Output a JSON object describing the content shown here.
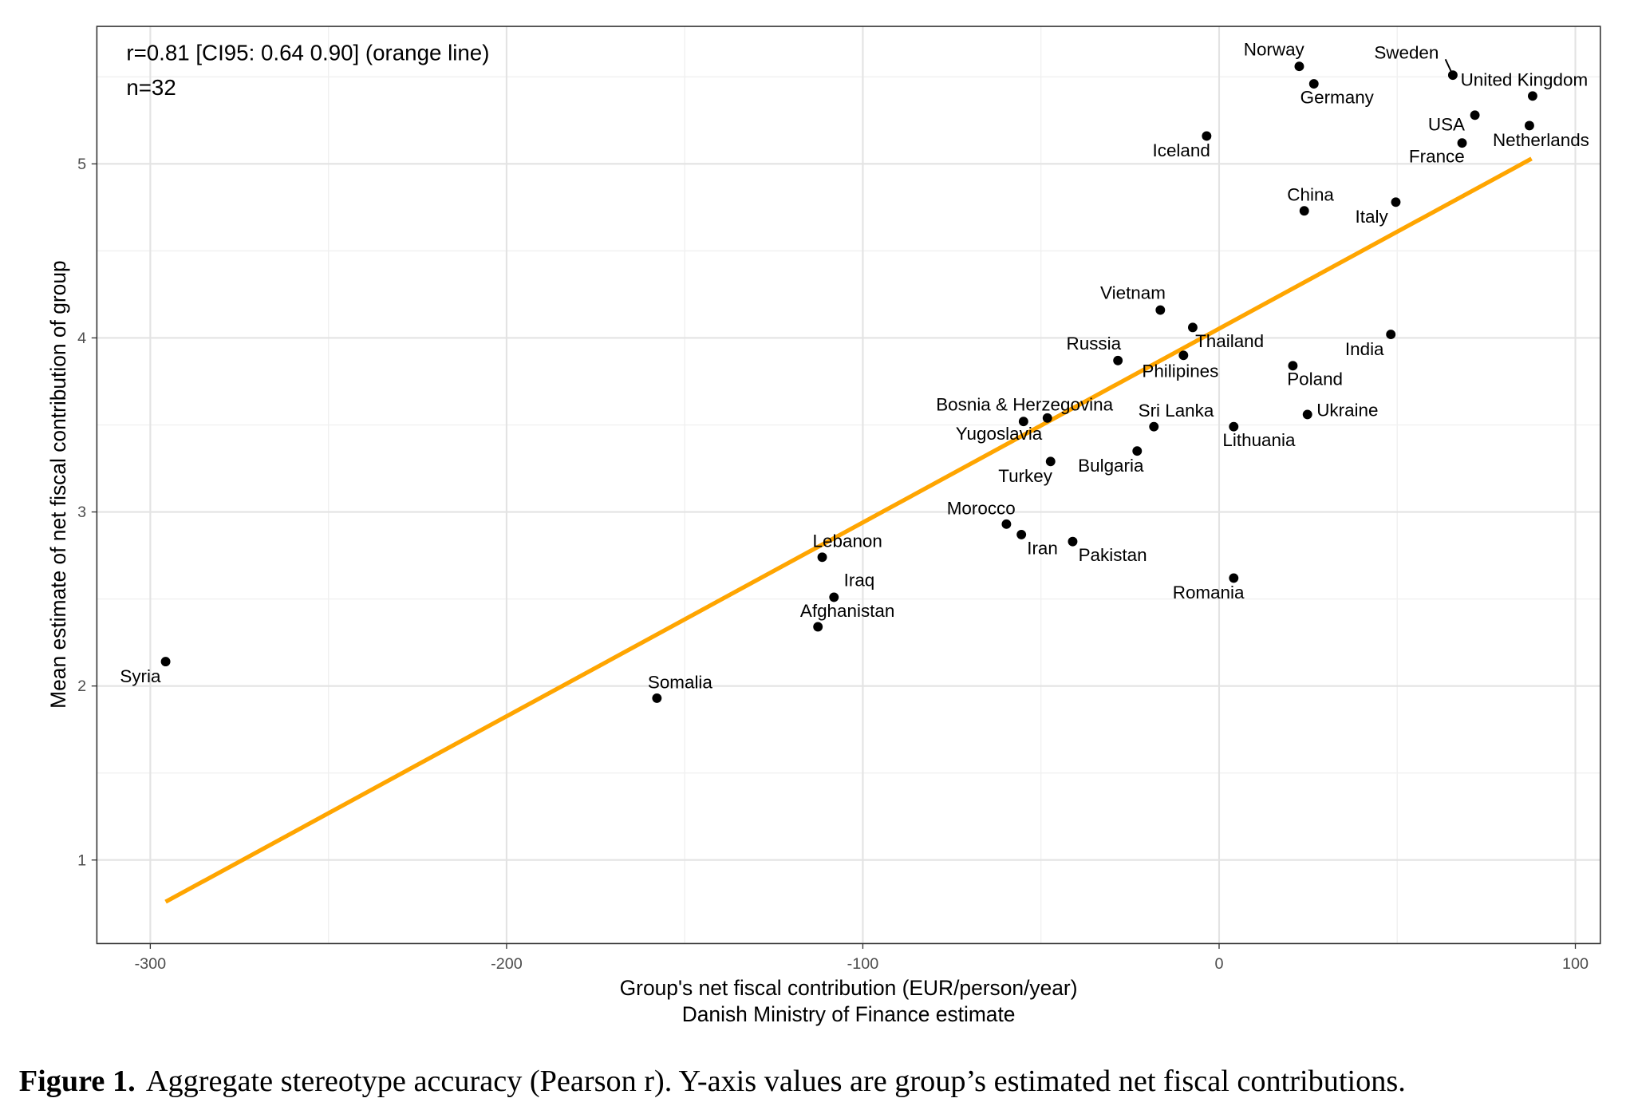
{
  "chart_data": {
    "type": "scatter",
    "xlabel": "Group's net fiscal contribution (EUR/person/year)",
    "xlabel2": "Danish Ministry of Finance estimate",
    "ylabel": "Mean estimate of net fiscal contribution of group",
    "xlim": [
      -315,
      107
    ],
    "ylim": [
      0.52,
      5.79
    ],
    "xticks": [
      -300,
      -200,
      -100,
      0,
      100
    ],
    "yticks": [
      1,
      2,
      3,
      4,
      5
    ],
    "grid": true,
    "annotation": [
      "r=0.81 [CI95: 0.64 0.90] (orange line)",
      "n=32"
    ],
    "fit_line": {
      "color": "#FFA500",
      "x": [
        -295.7,
        87.7
      ],
      "y": [
        0.76,
        5.03
      ]
    },
    "point_color": "#000000",
    "points": [
      {
        "label": "Norway",
        "x": 22.5,
        "y": 5.56
      },
      {
        "label": "Germany",
        "x": 26.6,
        "y": 5.46
      },
      {
        "label": "Sweden",
        "x": 65.6,
        "y": 5.51
      },
      {
        "label": "United Kingdom",
        "x": 88.0,
        "y": 5.39
      },
      {
        "label": "USA",
        "x": 71.8,
        "y": 5.28
      },
      {
        "label": "Netherlands",
        "x": 87.1,
        "y": 5.22
      },
      {
        "label": "France",
        "x": 68.2,
        "y": 5.12
      },
      {
        "label": "Iceland",
        "x": -3.5,
        "y": 5.16
      },
      {
        "label": "China",
        "x": 23.9,
        "y": 4.73
      },
      {
        "label": "Italy",
        "x": 49.6,
        "y": 4.78
      },
      {
        "label": "Vietnam",
        "x": -16.5,
        "y": 4.16
      },
      {
        "label": "Thailand",
        "x": -7.4,
        "y": 4.06
      },
      {
        "label": "Philipines",
        "x": -10.0,
        "y": 3.9
      },
      {
        "label": "Russia",
        "x": -28.4,
        "y": 3.87
      },
      {
        "label": "Poland",
        "x": 20.7,
        "y": 3.84
      },
      {
        "label": "India",
        "x": 48.2,
        "y": 4.02
      },
      {
        "label": "Bosnia & Herzegovina",
        "x": -54.9,
        "y": 3.52
      },
      {
        "label": "Yugoslavia",
        "x": -48.2,
        "y": 3.54
      },
      {
        "label": "Sri Lanka",
        "x": -18.3,
        "y": 3.49
      },
      {
        "label": "Ukraine",
        "x": 24.8,
        "y": 3.56
      },
      {
        "label": "Lithuania",
        "x": 4.1,
        "y": 3.49
      },
      {
        "label": "Bulgaria",
        "x": -23.0,
        "y": 3.35
      },
      {
        "label": "Turkey",
        "x": -47.3,
        "y": 3.29
      },
      {
        "label": "Morocco",
        "x": -59.7,
        "y": 2.93
      },
      {
        "label": "Iran",
        "x": -55.5,
        "y": 2.87
      },
      {
        "label": "Pakistan",
        "x": -41.1,
        "y": 2.83
      },
      {
        "label": "Romania",
        "x": 4.1,
        "y": 2.62
      },
      {
        "label": "Lebanon",
        "x": -111.4,
        "y": 2.74
      },
      {
        "label": "Iraq",
        "x": -108.1,
        "y": 2.51
      },
      {
        "label": "Afghanistan",
        "x": -112.6,
        "y": 2.34
      },
      {
        "label": "Syria",
        "x": -295.7,
        "y": 2.14
      },
      {
        "label": "Somalia",
        "x": -157.8,
        "y": 1.93
      }
    ]
  },
  "caption": {
    "label": "Figure 1.",
    "text": "Aggregate stereotype accuracy (Pearson r).  Y-axis values are group’s estimated net fiscal contributions."
  }
}
